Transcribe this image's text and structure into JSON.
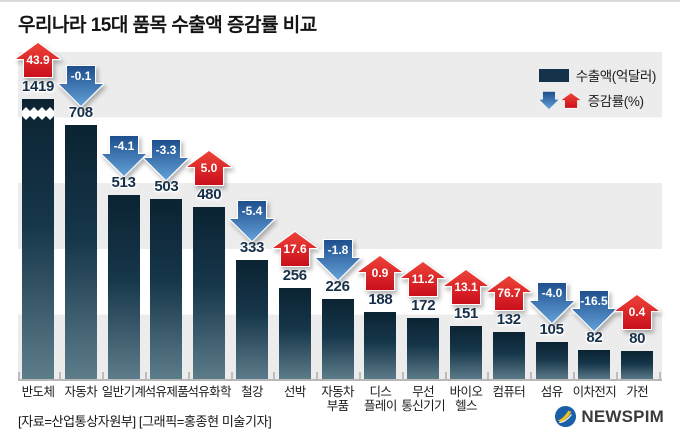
{
  "title": "우리나라 15대 품목 수출액 증감률 비교",
  "legend": {
    "export_label": "수출액(억달러)",
    "change_label": "증감률(%)"
  },
  "footer": {
    "source": "[자료=산업통상자원부] [그래픽=홍종현 미술기자]",
    "logo_text": "NEWSPIM"
  },
  "colors": {
    "bar_top": "#0b2332",
    "bar_bottom": "#5e7d8b",
    "up_arrow": "#d6151f",
    "down_arrow": "#2a62a5",
    "band_gray": "#ececec",
    "value_text": "#152f49"
  },
  "chart_data": {
    "type": "bar",
    "title": "우리나라 15대 품목 수출액 증감률 비교",
    "xlabel": "",
    "ylabel": "수출액(억달러)",
    "legend_position": "top-right",
    "grid": "horizontal-bands",
    "axis_break_category": "반도체",
    "categories": [
      "반도체",
      "자동차",
      "일반기계",
      "석유제품",
      "석유화학",
      "철강",
      "선박",
      "자동차부품",
      "디스플레이",
      "무선통신기기",
      "바이오헬스",
      "컴퓨터",
      "섬유",
      "이차전지",
      "가전"
    ],
    "categories_display": [
      "반도체",
      "자동차",
      "일반기계",
      "석유제품",
      "석유화학",
      "철강",
      "선박",
      "자동차\n부품",
      "디스\n플레이",
      "무선\n통신기기",
      "바이오\n헬스",
      "컴퓨터",
      "섬유",
      "이차전지",
      "가전"
    ],
    "series": [
      {
        "name": "수출액(억달러)",
        "values": [
          1419,
          708,
          513,
          503,
          480,
          333,
          256,
          226,
          188,
          172,
          151,
          132,
          105,
          82,
          80
        ]
      },
      {
        "name": "증감률(%)",
        "values": [
          43.9,
          -0.1,
          -4.1,
          -3.3,
          5.0,
          -5.4,
          17.6,
          -1.8,
          0.9,
          11.2,
          13.1,
          76.7,
          -4.0,
          -16.5,
          0.4
        ],
        "values_display": [
          "43.9",
          "-0.1",
          "-4.1",
          "-3.3",
          "5.0",
          "-5.4",
          "17.6",
          "-1.8",
          "0.9",
          "11.2",
          "13.1",
          "76.7",
          "-4.0",
          "-16.5",
          "0.4"
        ]
      }
    ]
  }
}
